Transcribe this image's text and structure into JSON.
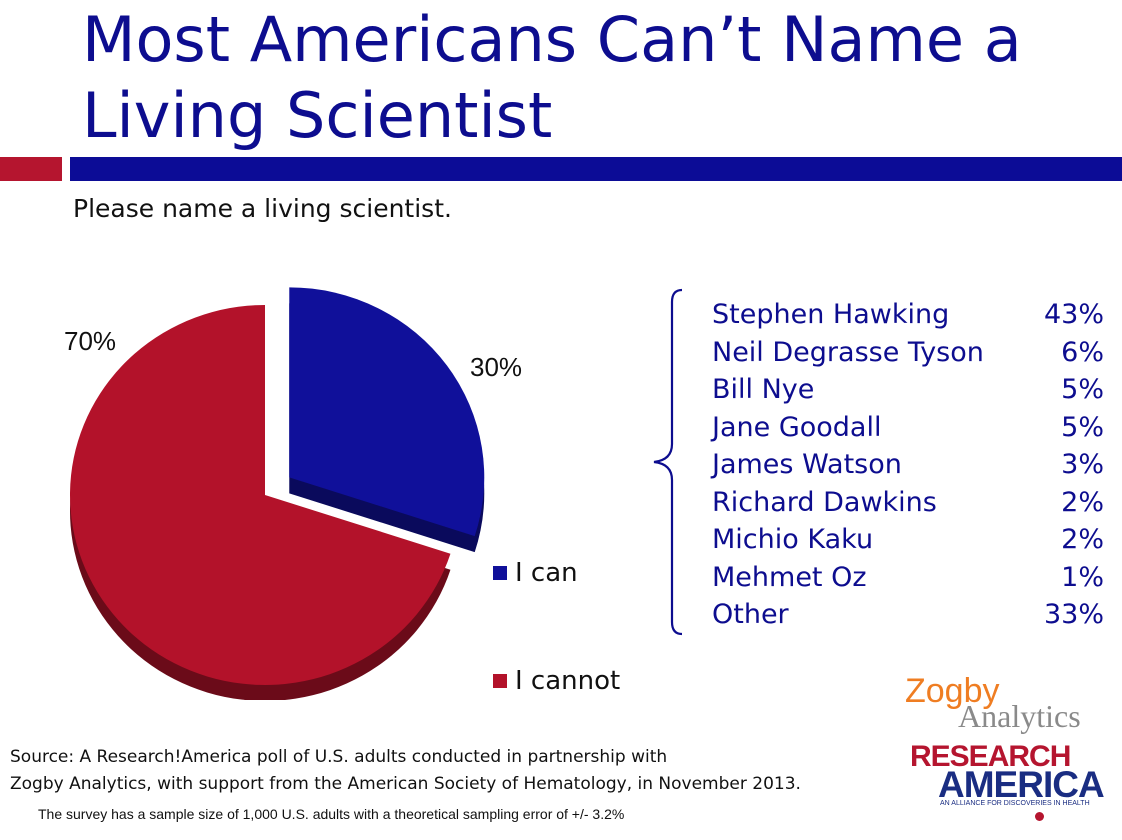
{
  "header": {
    "title": "Most Americans Can’t Name a Living Scientist",
    "question": "Please name a living scientist."
  },
  "colors": {
    "can": "#10109a",
    "cannot": "#b3122a",
    "brand_blue": "#0c0c96",
    "brand_red": "#b5152f"
  },
  "chart_data": {
    "type": "pie",
    "slices": [
      {
        "label": "I can",
        "value": 30,
        "display": "30%",
        "color": "#10109a",
        "exploded": true
      },
      {
        "label": "I cannot",
        "value": 70,
        "display": "70%",
        "color": "#b3122a",
        "exploded": false
      }
    ],
    "legend_position": "right"
  },
  "breakdown": [
    {
      "name": "Stephen Hawking",
      "pct": "43%"
    },
    {
      "name": "Neil Degrasse Tyson",
      "pct": "6%"
    },
    {
      "name": "Bill Nye",
      "pct": "5%"
    },
    {
      "name": "Jane Goodall",
      "pct": "5%"
    },
    {
      "name": "James Watson",
      "pct": "3%"
    },
    {
      "name": "Richard Dawkins",
      "pct": "2%"
    },
    {
      "name": "Michio Kaku",
      "pct": "2%"
    },
    {
      "name": "Mehmet Oz",
      "pct": "1%"
    },
    {
      "name": "Other",
      "pct": "33%"
    }
  ],
  "source": {
    "line1": "Source: A Research!America poll of U.S. adults conducted in partnership with",
    "line2": "Zogby Analytics, with support from the American Society of Hematology, in November 2013.",
    "note": "The survey has a sample size of 1,000 U.S. adults with a theoretical sampling error of +/- 3.2%"
  },
  "logos": {
    "zogby_top": "Zogby",
    "zogby_bottom": "Analytics",
    "ra_top": "RESEARCH",
    "ra_bottom": "AMERICA",
    "ra_tagline": "AN ALLIANCE FOR DISCOVERIES IN HEALTH"
  }
}
